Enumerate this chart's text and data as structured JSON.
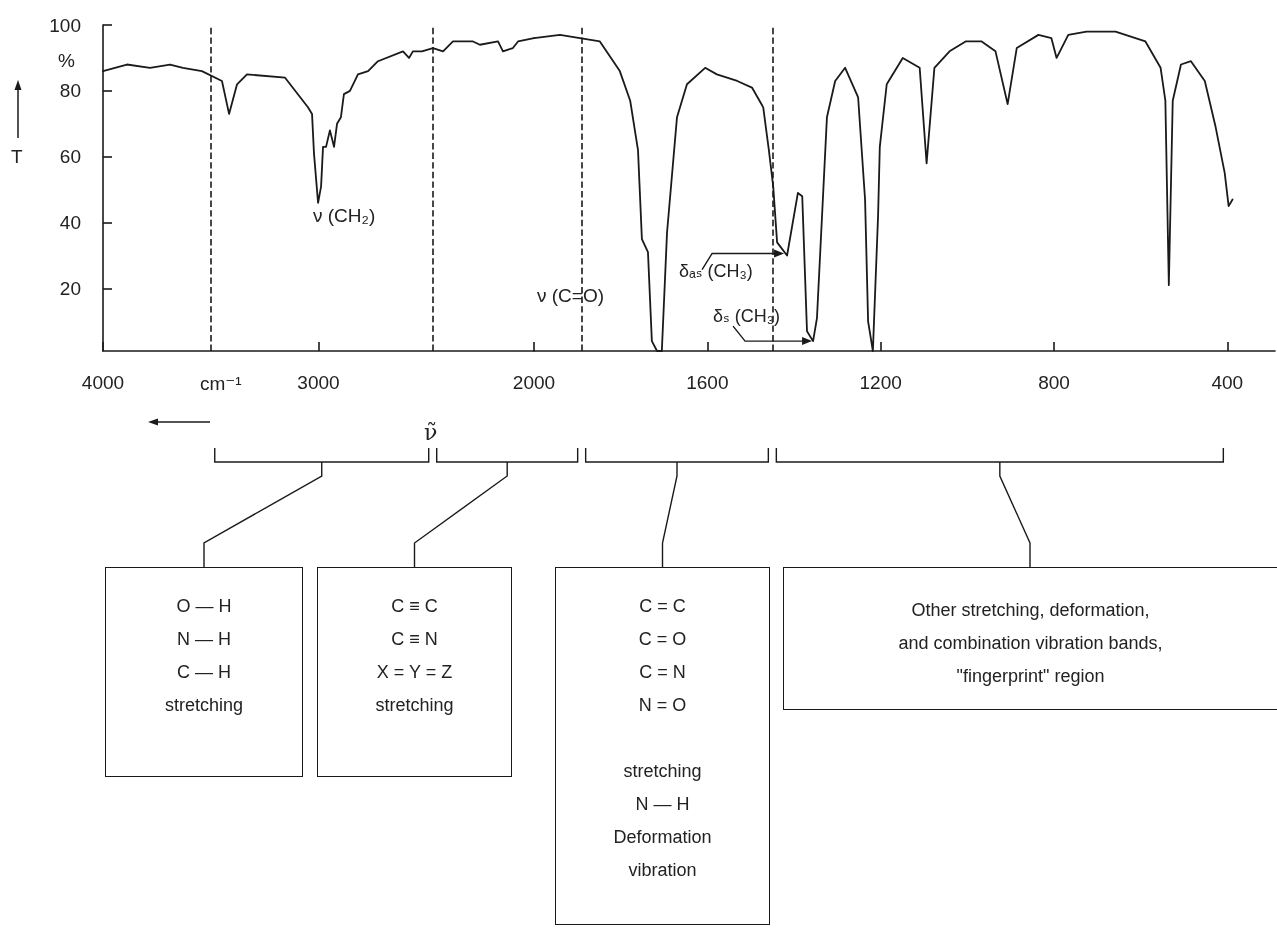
{
  "chart_data": [
    {
      "type": "line",
      "ylabel": "T",
      "xlabel": "ν̃",
      "x": [
        4000,
        3889,
        3782,
        3689,
        3629,
        3541,
        3448,
        3415,
        3378,
        3332,
        3155,
        3049,
        3030,
        3021,
        3002,
        2988,
        2979,
        2965,
        2947,
        2928,
        2914,
        2896,
        2882,
        2854,
        2817,
        2770,
        2724,
        2608,
        2580,
        2562,
        2520,
        2469,
        2422,
        2376,
        2283,
        2251,
        2167,
        2144,
        2098,
        2074,
        2000
      ],
      "series": [
        {
          "color": "#1a1a1a",
          "values": [
            86,
            88,
            87,
            88,
            87,
            86,
            83,
            73,
            82,
            85,
            84,
            75,
            73,
            61,
            46,
            51,
            63,
            63,
            68,
            63,
            70,
            72,
            79,
            80,
            85,
            86,
            89,
            92,
            90,
            92,
            92,
            93,
            92,
            95,
            95,
            94,
            95,
            92,
            93,
            95,
            96
          ]
        }
      ],
      "xlim": [
        4000,
        2000
      ],
      "xticks": [
        4000,
        3000
      ],
      "ylim": [
        1,
        100
      ],
      "yticks": [
        20,
        40,
        60,
        80,
        100
      ],
      "ref_lines": [
        {
          "axis": "x",
          "value": 3500,
          "line_style": "dashed"
        },
        {
          "axis": "x",
          "value": 2470,
          "line_style": "dashed"
        }
      ],
      "annotations": [
        "%",
        "cm⁻¹",
        "ν (CH₂)",
        "O — H\nN — H\nC — H\nstretching",
        "C ≡ C\nC ≡ N\nX = Y = Z\nstretching",
        "C = C\nC = O\nC = N\nN = O\n\nstretching\nN — H\nDeformation\nvibration",
        "Other stretching, deformation,\nand combination vibration bands,\n\"fingerprint\" region"
      ]
    },
    {
      "type": "line",
      "x": [
        2000,
        1940,
        1894,
        1848,
        1802,
        1778,
        1760,
        1751,
        1737,
        1728,
        1716,
        1705,
        1693,
        1670,
        1647,
        1605,
        1578,
        1531,
        1497,
        1471,
        1458,
        1448,
        1439,
        1416,
        1391,
        1381,
        1370,
        1356,
        1347,
        1324,
        1305,
        1282,
        1252,
        1236,
        1229,
        1218,
        1206,
        1202,
        1186,
        1149,
        1110,
        1094,
        1076,
        1041,
        1004,
        967,
        935,
        907,
        886,
        836,
        806,
        794,
        767,
        725,
        691,
        658,
        589,
        554,
        543,
        535,
        526,
        507,
        484,
        452,
        427,
        406,
        397,
        388
      ],
      "series": [
        {
          "color": "#1a1a1a",
          "values": [
            96,
            97,
            96,
            95,
            86,
            77,
            62,
            35,
            31,
            4,
            1,
            1,
            37,
            72,
            82,
            87,
            85,
            83,
            81,
            75,
            62,
            51,
            34,
            30,
            49,
            48,
            7,
            4,
            11,
            72,
            83,
            87,
            78,
            47,
            10,
            1,
            42,
            63,
            82,
            90,
            87,
            58,
            87,
            92,
            95,
            95,
            92,
            76,
            93,
            97,
            96,
            90,
            97,
            98,
            98,
            98,
            95,
            87,
            77,
            21,
            77,
            88,
            89,
            83,
            69,
            55,
            45,
            47
          ]
        }
      ],
      "xlim": [
        2000,
        290
      ],
      "xticks": [
        2000,
        1600,
        1200,
        800,
        400
      ],
      "ylim": [
        1,
        100
      ],
      "tick_labels": "x",
      "ref_lines": [
        {
          "axis": "x",
          "value": 1890,
          "line_style": "dashed"
        },
        {
          "axis": "x",
          "value": 1450,
          "line_style": "dashed"
        }
      ],
      "annotations": [
        "ν (C=O)",
        {
          "text": "δₐₛ (CH₃)",
          "x": 1416,
          "y": 30
        },
        {
          "text": "δₛ (CH₃)",
          "x": 1356,
          "y": 4
        }
      ]
    }
  ]
}
